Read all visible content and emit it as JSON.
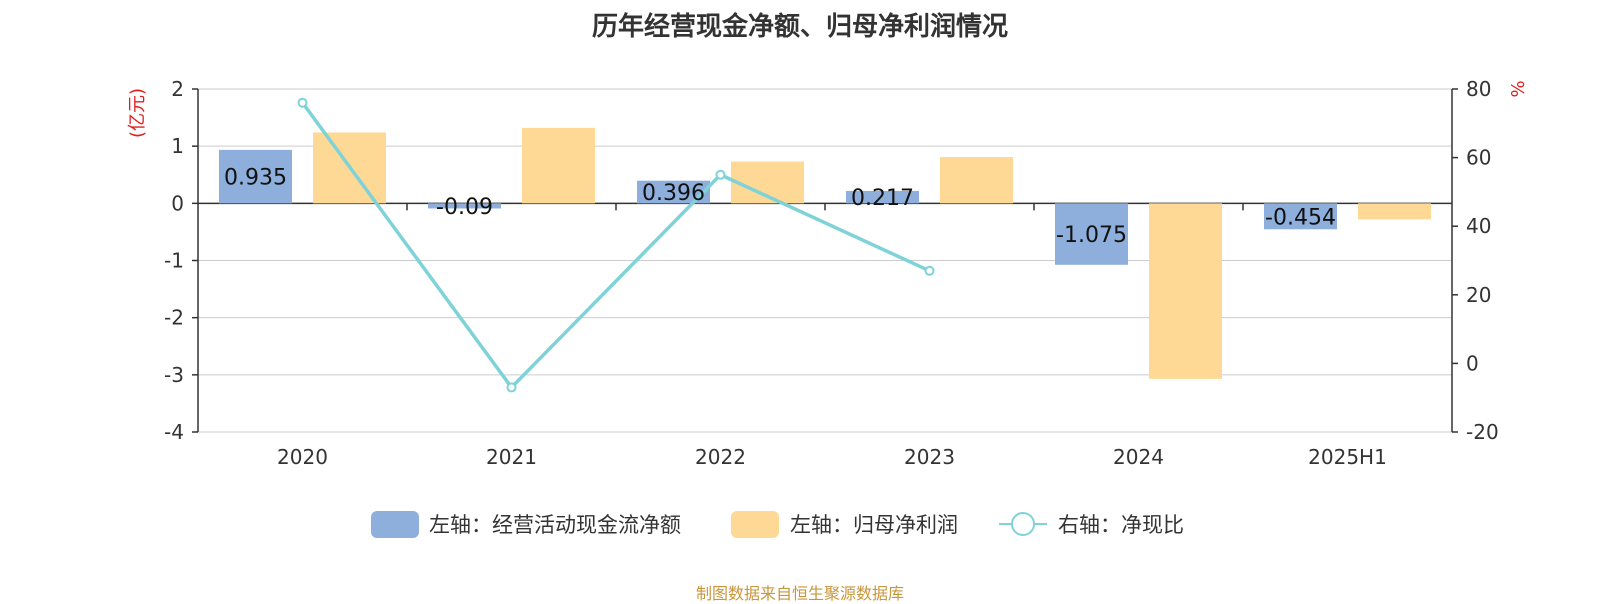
{
  "title": "历年经营现金净额、归母净利润情况",
  "source": "制图数据来自恒生聚源数据库",
  "colors": {
    "cash": "#8eafdb",
    "profit": "#fed895",
    "ratio": "#7fd3d8",
    "unit": "#e02020",
    "source": "#c8963c"
  },
  "chart_data": {
    "type": "bar",
    "title": "历年经营现金净额、归母净利润情况",
    "categories": [
      "2020",
      "2021",
      "2022",
      "2023",
      "2024",
      "2025H1"
    ],
    "left_axis": {
      "unit": "(亿元)",
      "ylim": [
        -4,
        2
      ],
      "ticks": [
        "2",
        "1",
        "0",
        "-1",
        "-2",
        "-3",
        "-4"
      ]
    },
    "right_axis": {
      "unit": "%",
      "ylim": [
        -20,
        80
      ],
      "ticks": [
        "80",
        "60",
        "40",
        "20",
        "0",
        "-20"
      ]
    },
    "series": [
      {
        "name": "左轴：经营活动现金流净额",
        "type": "bar",
        "axis": "left",
        "values": [
          0.935,
          -0.09,
          0.396,
          0.217,
          -1.075,
          -0.454
        ],
        "labels": [
          "0.935",
          "-0.09",
          "0.396",
          "0.217",
          "-1.075",
          "-0.454"
        ]
      },
      {
        "name": "左轴：归母净利润",
        "type": "bar",
        "axis": "left",
        "values": [
          1.24,
          1.32,
          0.73,
          0.81,
          -3.07,
          -0.28
        ]
      },
      {
        "name": "右轴：净现比",
        "type": "line",
        "axis": "right",
        "values": [
          76,
          -7,
          55,
          27,
          null,
          null
        ]
      }
    ],
    "grid": true,
    "legend_position": "bottom"
  }
}
